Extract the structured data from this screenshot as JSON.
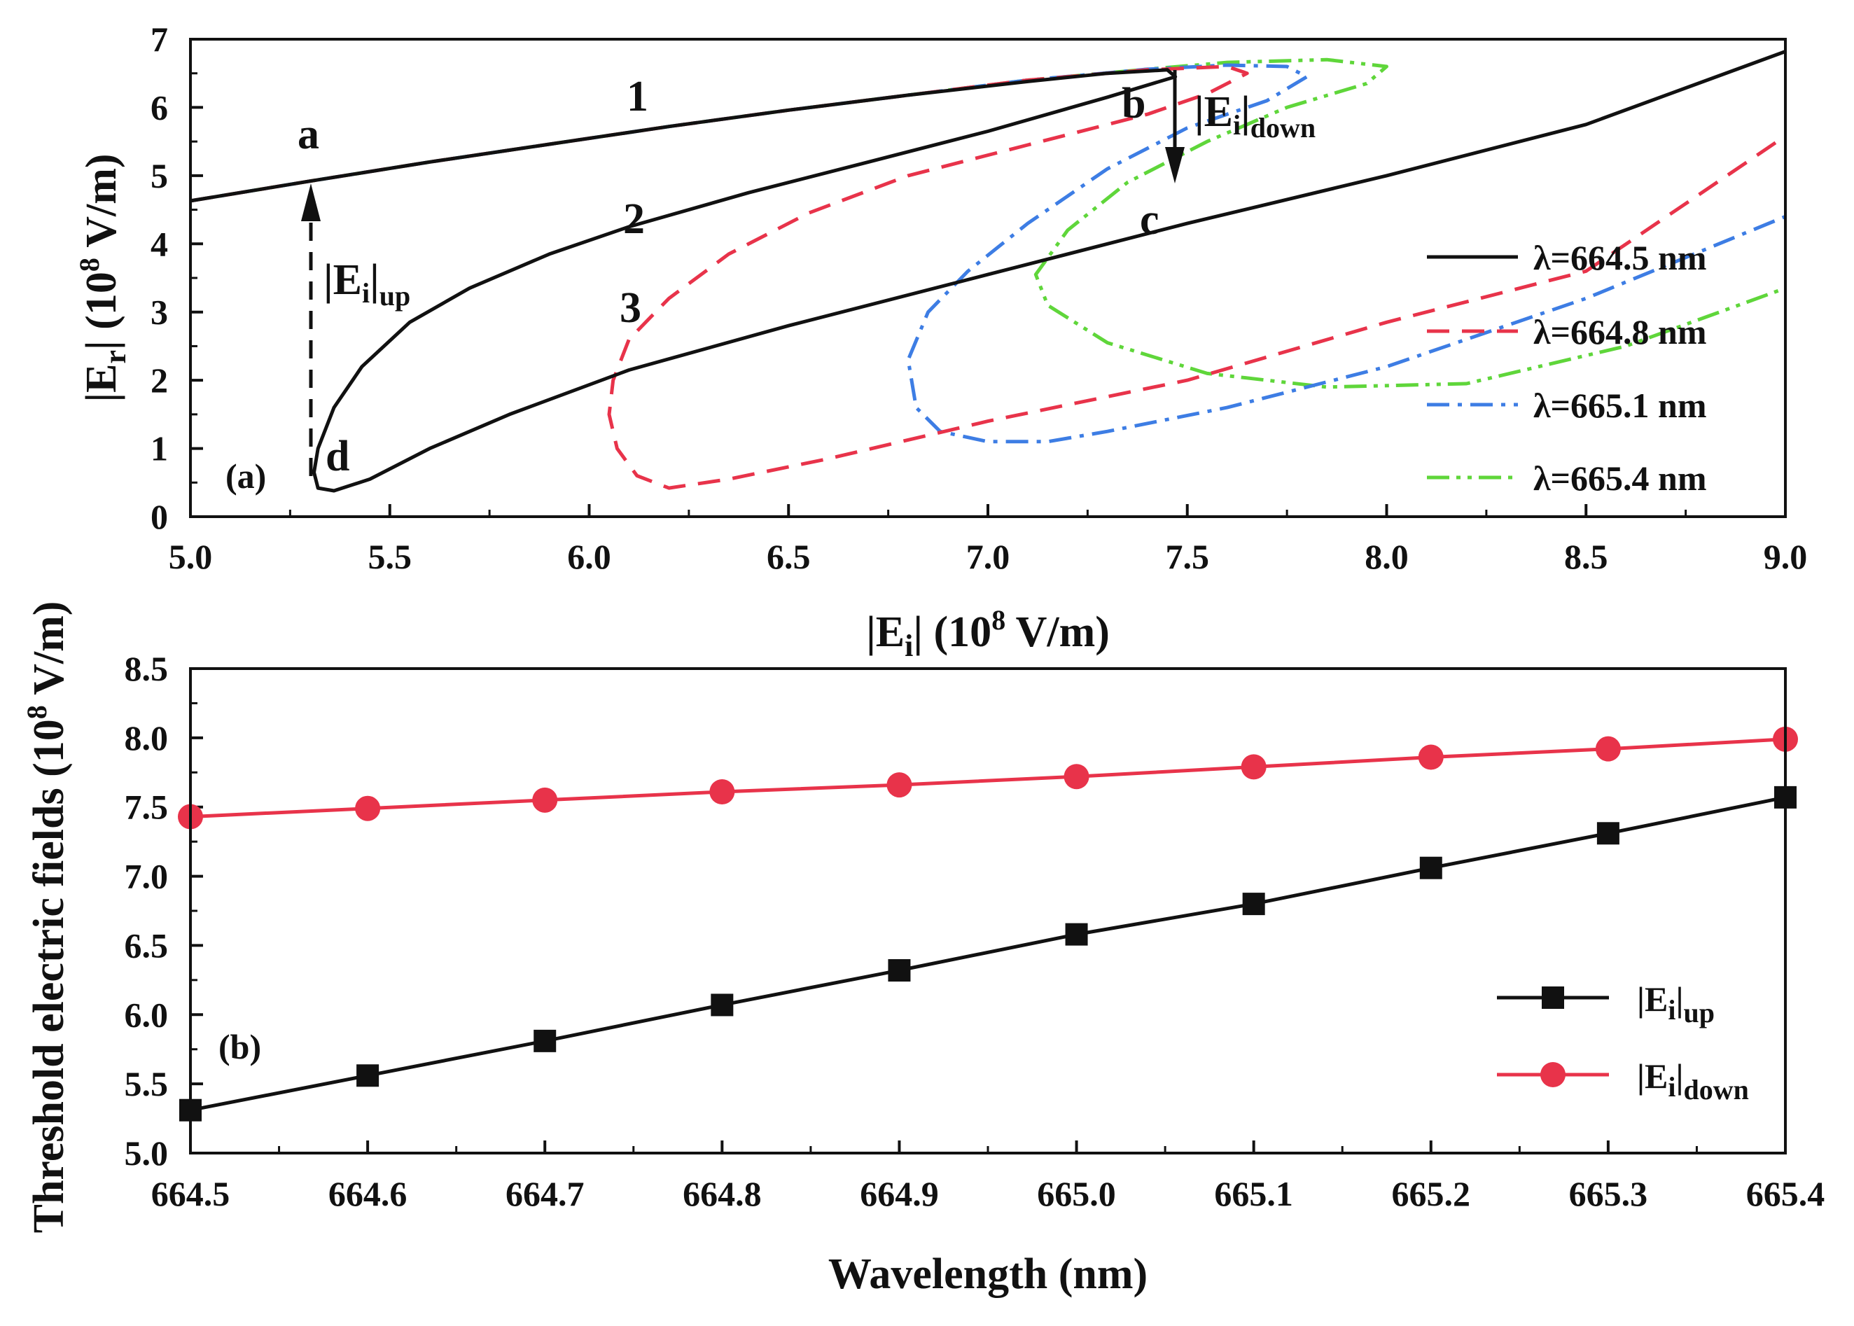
{
  "colors": {
    "black": "#111111",
    "red": "#e8334a",
    "blue": "#3d7de4",
    "green": "#5fd63a"
  },
  "chart_data": [
    {
      "panel": "(a)",
      "type": "line",
      "xlabel": "|Ei| (10^8 V/m)",
      "ylabel": "|Er| (10^8 V/m)",
      "xlim": [
        5.0,
        9.0
      ],
      "ylim": [
        0,
        7
      ],
      "xticks": [
        "5.0",
        "5.5",
        "6.0",
        "6.5",
        "7.0",
        "7.5",
        "8.0",
        "8.5",
        "9.0"
      ],
      "yticks": [
        "0",
        "1",
        "2",
        "3",
        "4",
        "5",
        "6",
        "7"
      ],
      "series": [
        {
          "name": "λ=664.5 nm",
          "style": "solid",
          "color": "#111111",
          "points": [
            [
              5.0,
              4.63
            ],
            [
              5.3,
              4.92
            ],
            [
              5.6,
              5.2
            ],
            [
              5.9,
              5.46
            ],
            [
              6.2,
              5.72
            ],
            [
              6.5,
              5.96
            ],
            [
              6.8,
              6.18
            ],
            [
              7.1,
              6.38
            ],
            [
              7.3,
              6.5
            ],
            [
              7.45,
              6.55
            ],
            [
              7.47,
              6.45
            ],
            [
              7.3,
              6.15
            ],
            [
              7.0,
              5.65
            ],
            [
              6.7,
              5.2
            ],
            [
              6.4,
              4.75
            ],
            [
              6.1,
              4.25
            ],
            [
              5.9,
              3.85
            ],
            [
              5.7,
              3.35
            ],
            [
              5.55,
              2.85
            ],
            [
              5.43,
              2.2
            ],
            [
              5.36,
              1.6
            ],
            [
              5.32,
              1.0
            ],
            [
              5.31,
              0.65
            ],
            [
              5.32,
              0.42
            ],
            [
              5.36,
              0.38
            ],
            [
              5.45,
              0.55
            ],
            [
              5.6,
              1.0
            ],
            [
              5.8,
              1.5
            ],
            [
              6.1,
              2.15
            ],
            [
              6.5,
              2.8
            ],
            [
              7.0,
              3.55
            ],
            [
              7.5,
              4.3
            ],
            [
              8.0,
              5.0
            ],
            [
              8.5,
              5.75
            ],
            [
              9.0,
              6.82
            ]
          ]
        },
        {
          "name": "λ=664.8 nm",
          "style": "dashed",
          "color": "#e8334a",
          "points": [
            [
              5.0,
              4.63
            ],
            [
              5.3,
              4.92
            ],
            [
              5.6,
              5.2
            ],
            [
              5.9,
              5.46
            ],
            [
              6.2,
              5.72
            ],
            [
              6.5,
              5.96
            ],
            [
              6.8,
              6.18
            ],
            [
              7.1,
              6.4
            ],
            [
              7.4,
              6.55
            ],
            [
              7.6,
              6.6
            ],
            [
              7.65,
              6.5
            ],
            [
              7.55,
              6.2
            ],
            [
              7.4,
              5.9
            ],
            [
              7.1,
              5.45
            ],
            [
              6.8,
              5.0
            ],
            [
              6.55,
              4.45
            ],
            [
              6.35,
              3.85
            ],
            [
              6.2,
              3.2
            ],
            [
              6.1,
              2.6
            ],
            [
              6.06,
              2.0
            ],
            [
              6.05,
              1.5
            ],
            [
              6.07,
              1.0
            ],
            [
              6.12,
              0.6
            ],
            [
              6.2,
              0.42
            ],
            [
              6.35,
              0.55
            ],
            [
              6.6,
              0.85
            ],
            [
              7.0,
              1.4
            ],
            [
              7.5,
              2.0
            ],
            [
              8.0,
              2.85
            ],
            [
              8.5,
              3.6
            ],
            [
              9.0,
              5.58
            ]
          ]
        },
        {
          "name": "λ=665.1 nm",
          "style": "dashdot",
          "color": "#3d7de4",
          "points": [
            [
              5.0,
              4.63
            ],
            [
              5.3,
              4.92
            ],
            [
              5.6,
              5.2
            ],
            [
              5.9,
              5.46
            ],
            [
              6.2,
              5.72
            ],
            [
              6.5,
              5.96
            ],
            [
              6.8,
              6.18
            ],
            [
              7.1,
              6.4
            ],
            [
              7.4,
              6.56
            ],
            [
              7.6,
              6.62
            ],
            [
              7.75,
              6.6
            ],
            [
              7.8,
              6.45
            ],
            [
              7.7,
              6.1
            ],
            [
              7.5,
              5.7
            ],
            [
              7.3,
              5.1
            ],
            [
              7.1,
              4.3
            ],
            [
              6.95,
              3.6
            ],
            [
              6.85,
              3.0
            ],
            [
              6.8,
              2.3
            ],
            [
              6.82,
              1.6
            ],
            [
              6.88,
              1.25
            ],
            [
              7.0,
              1.1
            ],
            [
              7.15,
              1.1
            ],
            [
              7.3,
              1.25
            ],
            [
              7.6,
              1.6
            ],
            [
              8.0,
              2.2
            ],
            [
              8.5,
              3.2
            ],
            [
              9.0,
              4.4
            ]
          ]
        },
        {
          "name": "λ=665.4 nm",
          "style": "dashdotdot",
          "color": "#5fd63a",
          "points": [
            [
              5.0,
              4.63
            ],
            [
              5.3,
              4.92
            ],
            [
              5.6,
              5.2
            ],
            [
              5.9,
              5.46
            ],
            [
              6.2,
              5.72
            ],
            [
              6.5,
              5.96
            ],
            [
              6.8,
              6.18
            ],
            [
              7.1,
              6.4
            ],
            [
              7.4,
              6.56
            ],
            [
              7.6,
              6.66
            ],
            [
              7.85,
              6.7
            ],
            [
              8.0,
              6.6
            ],
            [
              7.95,
              6.35
            ],
            [
              7.75,
              6.0
            ],
            [
              7.55,
              5.5
            ],
            [
              7.35,
              4.9
            ],
            [
              7.2,
              4.2
            ],
            [
              7.12,
              3.55
            ],
            [
              7.15,
              3.1
            ],
            [
              7.3,
              2.55
            ],
            [
              7.55,
              2.1
            ],
            [
              7.85,
              1.9
            ],
            [
              8.2,
              1.95
            ],
            [
              8.6,
              2.5
            ],
            [
              9.0,
              3.35
            ]
          ]
        }
      ],
      "annotations": [
        "1",
        "2",
        "3",
        "a",
        "b",
        "c",
        "d"
      ],
      "arrows": [
        {
          "label_base": "|E",
          "label_sub1": "i",
          "label_mid": "|",
          "label_sub2": "up",
          "from": [
            5.3,
            0.5
          ],
          "to": [
            5.3,
            4.92
          ]
        },
        {
          "label_base": "|E",
          "label_sub1": "i",
          "label_mid": "|",
          "label_sub2": "down",
          "from": [
            7.47,
            6.5
          ],
          "to": [
            7.47,
            4.8
          ]
        }
      ],
      "legend_position": "bottom-right"
    },
    {
      "panel": "(b)",
      "type": "line",
      "xlabel": "Wavelength (nm)",
      "ylabel": "Threshold electric fields (10^8 V/m)",
      "xlim": [
        664.5,
        665.4
      ],
      "ylim": [
        5.0,
        8.5
      ],
      "xticks": [
        "664.5",
        "664.6",
        "664.7",
        "664.8",
        "664.9",
        "665.0",
        "665.1",
        "665.2",
        "665.3",
        "665.4"
      ],
      "yticks": [
        "5.0",
        "5.5",
        "6.0",
        "6.5",
        "7.0",
        "7.5",
        "8.0",
        "8.5"
      ],
      "x": [
        664.5,
        664.6,
        664.7,
        664.8,
        664.9,
        665.0,
        665.1,
        665.2,
        665.3,
        665.4
      ],
      "series": [
        {
          "name": "|Ei|up",
          "marker": "square",
          "color": "#111111",
          "values": [
            5.31,
            5.56,
            5.81,
            6.07,
            6.32,
            6.58,
            6.8,
            7.06,
            7.31,
            7.57
          ]
        },
        {
          "name": "|Ei|down",
          "marker": "circle",
          "color": "#e8334a",
          "values": [
            7.43,
            7.49,
            7.55,
            7.61,
            7.66,
            7.72,
            7.79,
            7.86,
            7.92,
            7.99
          ]
        }
      ],
      "legend_position": "bottom-right"
    }
  ],
  "text": {
    "a_ylabel_base": "|E",
    "a_ylabel_sub": "r",
    "a_ylabel_rest": "| (10",
    "a_ylabel_sup": "8",
    "a_ylabel_end": " V/m)",
    "a_xlabel_base": "|E",
    "a_xlabel_sub": "i",
    "a_xlabel_rest": "| (10",
    "a_xlabel_sup": "8",
    "a_xlabel_end": " V/m)",
    "b_ylabel_main": "Threshold electric fields (10",
    "b_ylabel_sup": "8",
    "b_ylabel_end": " V/m)",
    "b_xlabel": "Wavelength (nm)",
    "panel_a": "(a)",
    "panel_b": "(b)",
    "legend_a": [
      "λ=664.5 nm",
      "λ=664.8 nm",
      "λ=665.1 nm",
      "λ=665.4 nm"
    ],
    "legend_b_base": "|E",
    "legend_b_sub": "i",
    "legend_b_bar": "|",
    "legend_b_up": "up",
    "legend_b_down": "down"
  }
}
